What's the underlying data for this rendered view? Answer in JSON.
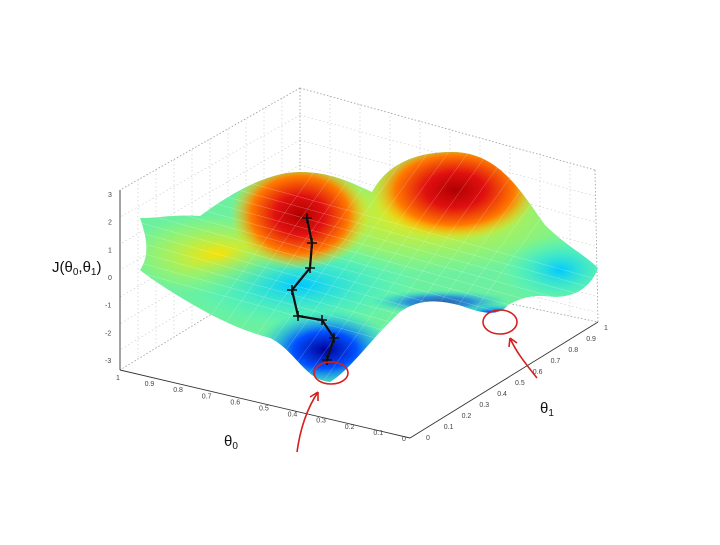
{
  "chart_data": {
    "type": "surface",
    "zlabel": {
      "main": "J(θ",
      "sub0": "0",
      "sep": ",θ",
      "sub1": "1",
      "close": ")"
    },
    "xlabel": {
      "main": "θ",
      "sub": "0"
    },
    "ylabel": {
      "main": "θ",
      "sub": "1"
    },
    "z_ticks": [
      "3",
      "2",
      "1",
      "0",
      "-1",
      "-2",
      "-3"
    ],
    "theta0_ticks": [
      "1",
      "0.9",
      "0.8",
      "0.7",
      "0.6",
      "0.5",
      "0.4",
      "0.3",
      "0.2",
      "0.1",
      "0"
    ],
    "theta1_ticks": [
      "0",
      "0.1",
      "0.2",
      "0.3",
      "0.4",
      "0.5",
      "0.6",
      "0.7",
      "0.8",
      "0.9",
      "1"
    ],
    "zlim": [
      -3,
      3
    ],
    "grid": true,
    "colormap": "jet",
    "colors": {
      "descent_path": "#111111",
      "annotation": "#d42020"
    },
    "annotations": [
      "red-circle-local-minimum-1",
      "red-circle-local-minimum-2",
      "red-arrow-1",
      "red-arrow-2"
    ],
    "descent_path_points": 8
  }
}
